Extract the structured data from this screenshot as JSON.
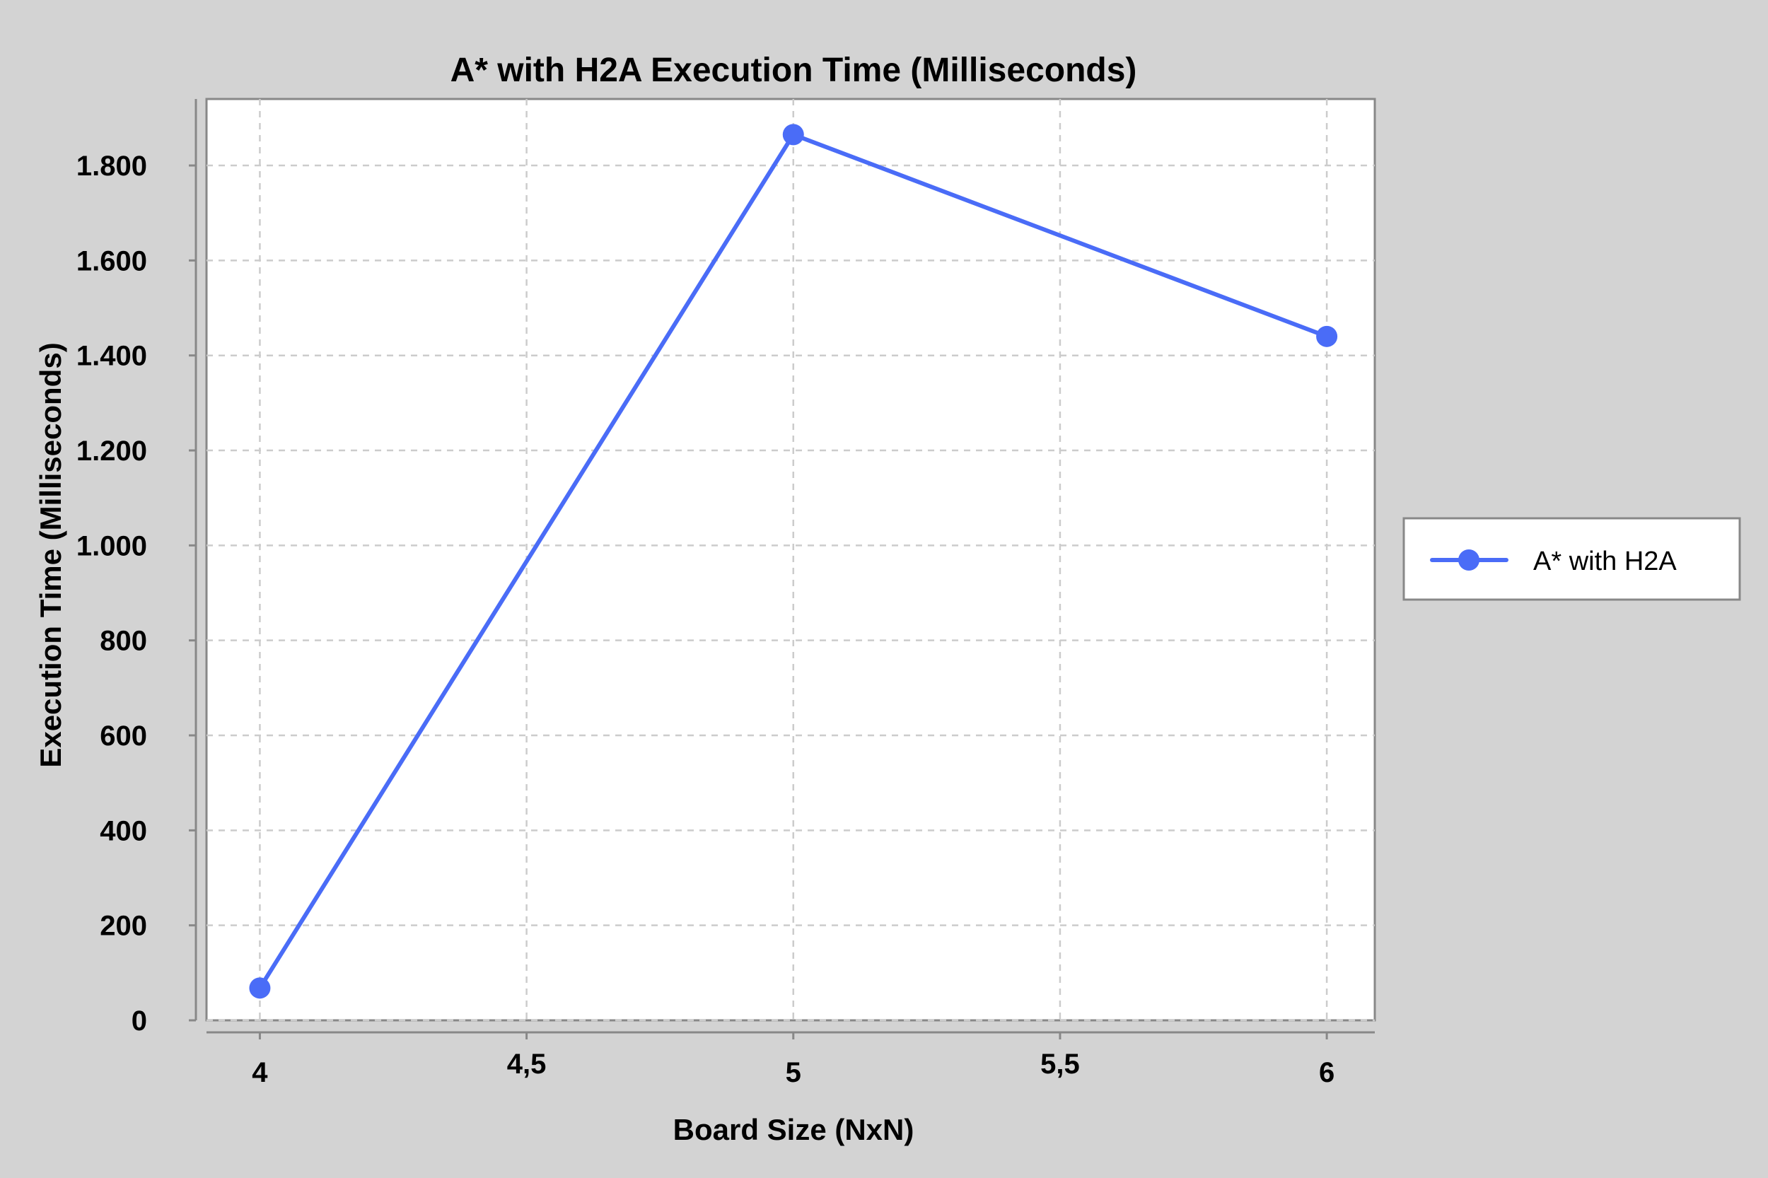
{
  "chart_data": {
    "type": "line",
    "title": "A* with H2A Execution Time (Milliseconds)",
    "xlabel": "Board Size (NxN)",
    "ylabel": "Execution Time (Milliseconds)",
    "xlim": [
      3.9,
      6.09
    ],
    "ylim": [
      0,
      1940
    ],
    "x_ticks": [
      {
        "value": 4,
        "label": "4"
      },
      {
        "value": 4.5,
        "label": "4,5"
      },
      {
        "value": 5,
        "label": "5"
      },
      {
        "value": 5.5,
        "label": "5,5"
      },
      {
        "value": 6,
        "label": "6"
      }
    ],
    "y_ticks": [
      {
        "value": 0,
        "label": "0"
      },
      {
        "value": 200,
        "label": "200"
      },
      {
        "value": 400,
        "label": "400"
      },
      {
        "value": 600,
        "label": "600"
      },
      {
        "value": 800,
        "label": "800"
      },
      {
        "value": 1000,
        "label": "1.000"
      },
      {
        "value": 1200,
        "label": "1.200"
      },
      {
        "value": 1400,
        "label": "1.400"
      },
      {
        "value": 1600,
        "label": "1.600"
      },
      {
        "value": 1800,
        "label": "1.800"
      }
    ],
    "grid": true,
    "legend_position": "right",
    "series": [
      {
        "name": "A* with H2A",
        "color": "#4a6cf7",
        "x": [
          4,
          5,
          6
        ],
        "y": [
          68,
          1865,
          1440
        ]
      }
    ]
  }
}
